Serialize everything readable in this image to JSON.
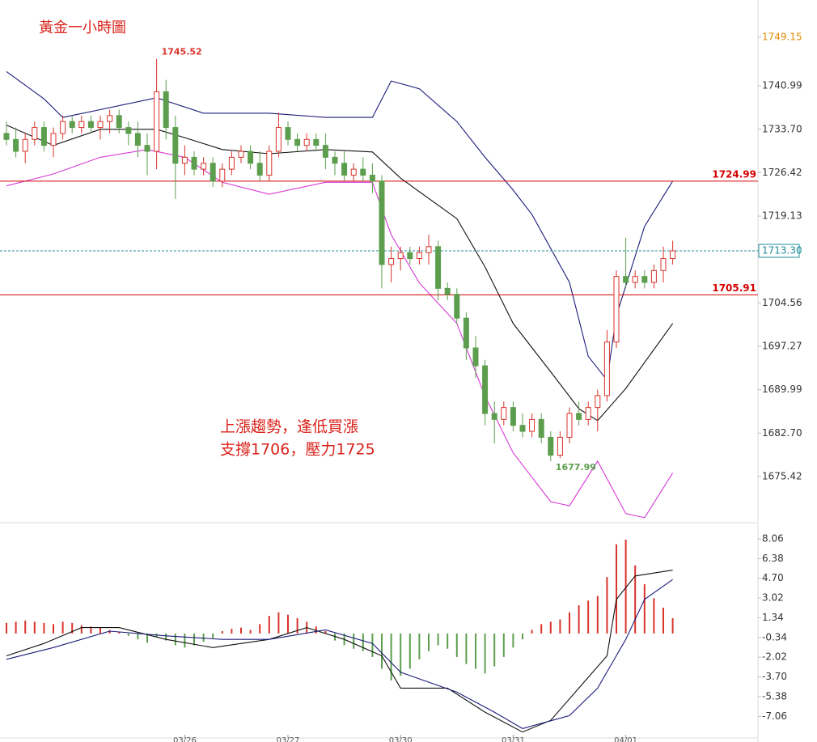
{
  "chart_data": {
    "type": "candlestick",
    "title": "黃金一小時圖",
    "annotations": [
      "上漲趨勢，逢低買漲",
      "支撐1706，壓力1725"
    ],
    "categories": [
      null,
      null,
      null,
      null,
      null,
      null,
      null,
      null,
      null,
      null,
      null,
      null,
      null,
      null,
      null,
      null,
      null,
      null,
      null,
      "03/26",
      null,
      null,
      null,
      null,
      null,
      null,
      null,
      null,
      null,
      null,
      "03/27",
      null,
      null,
      null,
      null,
      null,
      null,
      null,
      null,
      null,
      null,
      null,
      "03/30",
      null,
      null,
      null,
      null,
      null,
      null,
      null,
      null,
      null,
      null,
      null,
      "03/31",
      null,
      null,
      null,
      null,
      null,
      null,
      null,
      null,
      null,
      null,
      null,
      "04/01",
      null,
      null,
      null,
      null,
      null
    ],
    "open": [
      1733,
      1732,
      1730,
      1732,
      1734,
      1731,
      1733,
      1735,
      1734,
      1735,
      1734,
      1735,
      1736,
      1734,
      1733,
      1731,
      1730,
      1740,
      1734,
      1728,
      1729,
      1727,
      1728,
      1725,
      1727,
      1729,
      1730,
      1728,
      1726,
      1730,
      1734,
      1732,
      1731,
      1732,
      1731,
      1729,
      1728,
      1726,
      1727,
      1726,
      1725,
      1711,
      1712,
      1713,
      1712,
      1713,
      1714,
      1707,
      1706,
      1702,
      1697,
      1694,
      1686,
      1685,
      1687,
      1684,
      1683,
      1685,
      1682,
      1679,
      1682,
      1686,
      1685,
      1687,
      1689,
      1698,
      1709,
      1708,
      1709,
      1708,
      1710,
      1712
    ],
    "high": [
      1735,
      1734,
      1733,
      1735,
      1735,
      1734,
      1736,
      1736,
      1736,
      1736,
      1736,
      1737,
      1737,
      1735,
      1735,
      1733,
      1745.52,
      1742,
      1736,
      1731,
      1730,
      1729,
      1729,
      1728,
      1730,
      1731,
      1731,
      1730,
      1731,
      1736.5,
      1735,
      1733,
      1733,
      1733,
      1733,
      1730,
      1730,
      1728,
      1729,
      1728,
      1726,
      1714,
      1714,
      1714,
      1714,
      1716,
      1715,
      1708,
      1707,
      1703,
      1699,
      1695,
      1688,
      1688,
      1688,
      1686,
      1686,
      1686,
      1683,
      1683,
      1687,
      1688,
      1688,
      1690,
      1700,
      1710,
      1715.5,
      1710,
      1710,
      1711,
      1714,
      1715
    ],
    "low": [
      1731,
      1729,
      1728,
      1731,
      1730,
      1729,
      1732,
      1733,
      1733,
      1733,
      1732,
      1733,
      1733,
      1731,
      1729,
      1726,
      1727,
      1732,
      1722,
      1726,
      1726,
      1726,
      1724,
      1724,
      1726,
      1728,
      1727,
      1725,
      1725,
      1729,
      1731,
      1730,
      1730,
      1730,
      1727,
      1726,
      1725,
      1725,
      1725,
      1723,
      1707,
      1708,
      1710,
      1711,
      1711,
      1711,
      1705,
      1705,
      1701,
      1695,
      1692,
      1684,
      1681,
      1684,
      1683,
      1682,
      1682,
      1681,
      1677.99,
      1678.5,
      1681,
      1684,
      1684,
      1683,
      1688,
      1697,
      1707,
      1707,
      1707,
      1707,
      1708,
      1711
    ],
    "close": [
      1732,
      1730,
      1732,
      1734,
      1731,
      1733,
      1735,
      1734,
      1735,
      1734,
      1735,
      1736,
      1734,
      1733,
      1731,
      1730,
      1740,
      1734,
      1728,
      1729,
      1727,
      1728,
      1725,
      1727,
      1729,
      1730,
      1728,
      1726,
      1730,
      1734,
      1732,
      1731,
      1732,
      1731,
      1729,
      1728,
      1726,
      1727,
      1726,
      1725,
      1711,
      1712,
      1713,
      1712,
      1713,
      1714,
      1707,
      1706,
      1702,
      1697,
      1694,
      1686,
      1685,
      1687,
      1684,
      1683,
      1685,
      1682,
      1679,
      1682,
      1686,
      1685,
      1687,
      1689,
      1698,
      1709,
      1708,
      1709,
      1708,
      1710,
      1712,
      1713.3
    ],
    "up_color": "#d9332b",
    "down_color": "#5c9e4e",
    "bands": [
      {
        "color": "#1b1b7a",
        "x": [
          0,
          4,
          6,
          10,
          16,
          21,
          28,
          34,
          39,
          41,
          44,
          48,
          51,
          54,
          56,
          60,
          62,
          64,
          65,
          68,
          71
        ],
        "values": [
          1743.4,
          1738.8,
          1735.7,
          1737,
          1739,
          1736.4,
          1736.4,
          1735.7,
          1735.7,
          1741.8,
          1740.5,
          1735,
          1729,
          1723.5,
          1719.4,
          1708,
          1695.6,
          1691.6,
          1702.4,
          1717.4,
          1725
        ]
      },
      {
        "color": "#111111",
        "x": [
          0,
          5,
          10,
          16,
          19,
          23,
          28,
          34,
          39,
          42,
          48,
          51,
          54,
          58,
          61,
          63,
          66,
          71
        ],
        "values": [
          1734.4,
          1731,
          1733.7,
          1733.7,
          1732.3,
          1730.3,
          1729.6,
          1730.3,
          1729.9,
          1725.5,
          1718.7,
          1710.6,
          1701.1,
          1693,
          1686.8,
          1684.8,
          1690.2,
          1701.1
        ]
      },
      {
        "color": "#d63ad6",
        "x": [
          0,
          5,
          10,
          15,
          19,
          23,
          28,
          34,
          39,
          41,
          44,
          48,
          51,
          54,
          58,
          60,
          63,
          66,
          68,
          71
        ],
        "values": [
          1724.2,
          1726.2,
          1729,
          1730.3,
          1729,
          1724.8,
          1722.8,
          1724.8,
          1724.8,
          1716,
          1707.9,
          1701.1,
          1688.9,
          1679.4,
          1671.2,
          1670.5,
          1678,
          1669.2,
          1668.5,
          1676
        ]
      }
    ],
    "levels": [
      {
        "value": 1724.99,
        "color": "#d40000"
      },
      {
        "value": 1705.91,
        "color": "#d40000"
      }
    ],
    "last_price": {
      "value": 1713.3,
      "label": "1713.30",
      "color": "#1f8f9a"
    },
    "ylim": [
      1667.8,
      1755.4
    ],
    "yticks": [
      1749.15,
      1740.99,
      {
        "value": 1733.7,
        "label": "1733.70"
      },
      1726.42,
      1719.13,
      1704.56,
      1697.27,
      1689.99,
      {
        "value": 1682.7,
        "label": "1682.70"
      },
      1675.42
    ],
    "macd": {
      "ylim": [
        -8.9,
        9.3
      ],
      "yticks": [
        8.06,
        6.38,
        {
          "value": 4.7,
          "label": "4.70"
        },
        3.02,
        1.34,
        -0.34,
        -2.02,
        {
          "value": -3.7,
          "label": "-3.70"
        },
        -5.38,
        -7.06
      ],
      "histogram": [
        0.9,
        1.0,
        1.1,
        1.0,
        0.9,
        0.8,
        1.0,
        0.9,
        0.7,
        0.6,
        0.5,
        0.3,
        0.1,
        -0.2,
        -0.5,
        -0.8,
        -0.3,
        -0.6,
        -1.0,
        -1.2,
        -1.0,
        -0.7,
        -0.4,
        0.2,
        0.4,
        0.5,
        0.3,
        0.8,
        1.5,
        1.8,
        1.6,
        1.3,
        1.0,
        0.6,
        0.2,
        -0.6,
        -1.0,
        -1.3,
        -1.5,
        -2.0,
        -3.0,
        -4.0,
        -3.6,
        -3.0,
        -2.2,
        -1.5,
        -1.0,
        -1.3,
        -2.0,
        -2.6,
        -3.0,
        -3.4,
        -2.8,
        -2.0,
        -1.2,
        -0.5,
        0.3,
        0.8,
        1.0,
        1.2,
        1.8,
        2.4,
        2.8,
        3.2,
        4.8,
        7.6,
        8.0,
        5.8,
        4.2,
        3.0,
        2.2,
        1.3
      ],
      "hist_up_color": "#d9332b",
      "hist_down_color": "#5c9e4e",
      "lines": [
        {
          "color": "#111111",
          "x": [
            0,
            4,
            8,
            12,
            17,
            22,
            28,
            32,
            36,
            40,
            42,
            47,
            51,
            55,
            58,
            61,
            64,
            65,
            67,
            71
          ],
          "values": [
            -1.9,
            -0.85,
            0.5,
            0.5,
            -0.5,
            -1.2,
            -0.5,
            0.5,
            -0.5,
            -1.9,
            -4.65,
            -4.65,
            -6.7,
            -8.4,
            -7.4,
            -4.65,
            -1.9,
            2.9,
            4.9,
            5.4
          ]
        },
        {
          "color": "#1b1b7a",
          "x": [
            0,
            5,
            11,
            17,
            23,
            28,
            34,
            39,
            42,
            48,
            52,
            55,
            60,
            63,
            66,
            68,
            71
          ],
          "values": [
            -2.2,
            -1.2,
            0.2,
            -0.2,
            -0.5,
            -0.5,
            0.3,
            -0.85,
            -3.3,
            -5,
            -6.7,
            -8.1,
            -7,
            -4.65,
            -0.5,
            2.9,
            4.6
          ]
        }
      ]
    }
  }
}
